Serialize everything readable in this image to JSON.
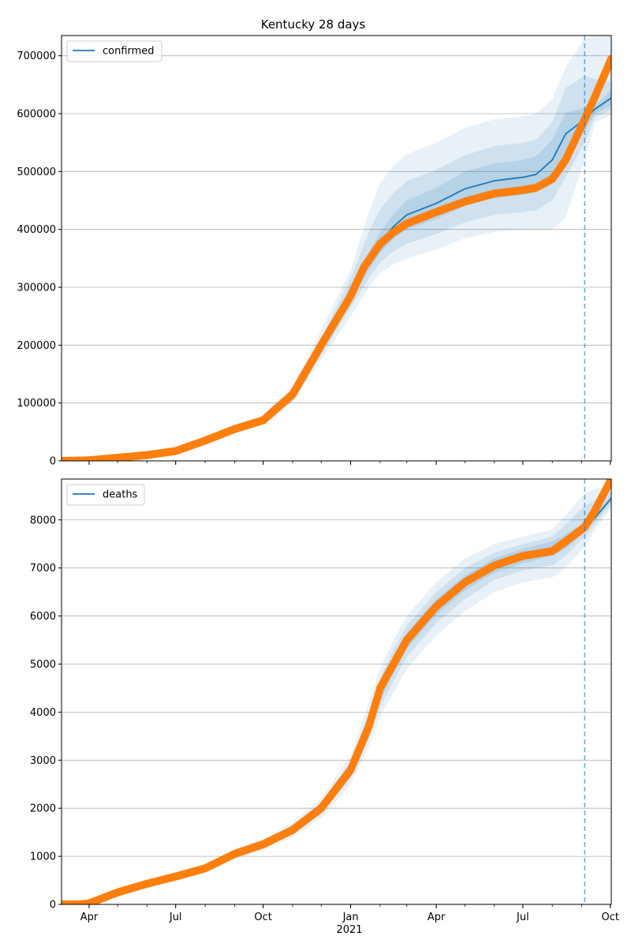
{
  "figure": {
    "title": "Kentucky 28 days",
    "shared_x_label": "2021"
  },
  "colors": {
    "model": "#1f77b4",
    "observed": "#ff7f0e",
    "band": "#1f77b4",
    "grid": "#b0b0b0",
    "axes": "#000000"
  },
  "chart_data": [
    {
      "type": "line",
      "title": "Kentucky 28 days",
      "legend": {
        "labels": [
          "confirmed"
        ],
        "placement": "top-left"
      },
      "x_ticks": [
        "Apr",
        "Jul",
        "Oct",
        "Jan",
        "Apr",
        "Jul",
        "Oct"
      ],
      "x_tick_dates": [
        "2020-04-01",
        "2020-07-01",
        "2020-10-01",
        "2021-01-01",
        "2021-04-01",
        "2021-07-01",
        "2021-10-01"
      ],
      "xlim": [
        "2020-03-03",
        "2021-10-02"
      ],
      "ylim": [
        0,
        735000
      ],
      "y_ticks": [
        0,
        100000,
        200000,
        300000,
        400000,
        500000,
        600000,
        700000
      ],
      "grid": "horizontal",
      "forecast_start": "2021-09-04",
      "series": [
        {
          "name": "confirmed",
          "style": "line",
          "x": [
            "2020-03-03",
            "2020-04-01",
            "2020-05-01",
            "2020-06-01",
            "2020-07-01",
            "2020-08-01",
            "2020-09-01",
            "2020-10-01",
            "2020-11-01",
            "2020-12-01",
            "2021-01-01",
            "2021-01-20",
            "2021-02-01",
            "2021-02-15",
            "2021-03-01",
            "2021-04-01",
            "2021-05-01",
            "2021-06-01",
            "2021-07-01",
            "2021-07-15",
            "2021-08-01",
            "2021-08-15",
            "2021-09-04",
            "2021-09-15",
            "2021-10-02"
          ],
          "y": [
            0,
            1000,
            5500,
            10000,
            17000,
            35000,
            55000,
            70000,
            110000,
            195000,
            290000,
            345000,
            378000,
            405000,
            425000,
            445000,
            470000,
            484000,
            490000,
            495000,
            520000,
            565000,
            590000,
            608000,
            627000
          ]
        },
        {
          "style": "markers",
          "x": [
            "2020-03-03",
            "2020-04-01",
            "2020-05-01",
            "2020-06-01",
            "2020-07-01",
            "2020-08-01",
            "2020-09-01",
            "2020-10-01",
            "2020-11-01",
            "2020-12-01",
            "2021-01-01",
            "2021-01-15",
            "2021-02-01",
            "2021-02-15",
            "2021-03-01",
            "2021-04-01",
            "2021-05-01",
            "2021-06-01",
            "2021-07-01",
            "2021-07-15",
            "2021-08-01",
            "2021-08-15",
            "2021-09-04",
            "2021-09-15",
            "2021-10-02"
          ],
          "y": [
            0,
            1000,
            5500,
            10000,
            17000,
            35000,
            55000,
            70000,
            115000,
            200000,
            285000,
            335000,
            375000,
            395000,
            410000,
            430000,
            448000,
            462000,
            468000,
            472000,
            487000,
            520000,
            590000,
            630000,
            695000
          ]
        }
      ],
      "bands": [
        {
          "lower": [
            0,
            800,
            4900,
            9100,
            15600,
            32000,
            50000,
            64500,
            100000,
            175000,
            250000,
            300000,
            325000,
            340000,
            350000,
            365000,
            385000,
            395000,
            400000,
            400000,
            400000,
            420000,
            520000,
            585000,
            598000
          ],
          "upper": [
            0,
            1200,
            6100,
            10900,
            18400,
            38500,
            63000,
            80000,
            130000,
            225000,
            330000,
            430000,
            480000,
            510000,
            530000,
            550000,
            575000,
            590000,
            595000,
            600000,
            625000,
            680000,
            730000,
            735000,
            735000
          ]
        },
        {
          "lower": [
            0,
            850,
            5050,
            9300,
            16000,
            33000,
            52000,
            66500,
            103000,
            182000,
            265000,
            315000,
            343000,
            362000,
            375000,
            392000,
            412000,
            425000,
            430000,
            433000,
            450000,
            490000,
            550000,
            594000,
            606000
          ],
          "upper": [
            0,
            1150,
            5950,
            10700,
            18000,
            37000,
            59000,
            75000,
            122000,
            212000,
            315000,
            395000,
            435000,
            463000,
            483000,
            503000,
            528000,
            544000,
            550000,
            555000,
            585000,
            645000,
            665000,
            660000,
            655000
          ]
        },
        {
          "lower": [
            0,
            900,
            5200,
            9600,
            16400,
            34000,
            53500,
            68000,
            106000,
            188000,
            277000,
            330000,
            360000,
            384000,
            400000,
            418000,
            440000,
            454000,
            460000,
            464000,
            485000,
            528000,
            570000,
            600000,
            614000
          ],
          "upper": [
            0,
            1100,
            5800,
            10400,
            17600,
            36000,
            56500,
            72000,
            114000,
            202000,
            303000,
            360000,
            396000,
            426000,
            450000,
            472000,
            500000,
            514000,
            520000,
            526000,
            555000,
            602000,
            610000,
            615000,
            640000
          ]
        }
      ]
    },
    {
      "type": "line",
      "legend": {
        "labels": [
          "deaths"
        ],
        "placement": "top-left"
      },
      "x_ticks": [
        "Apr",
        "Jul",
        "Oct",
        "Jan",
        "Apr",
        "Jul",
        "Oct"
      ],
      "x_tick_dates": [
        "2020-04-01",
        "2020-07-01",
        "2020-10-01",
        "2021-01-01",
        "2021-04-01",
        "2021-07-01",
        "2021-10-01"
      ],
      "xlim": [
        "2020-03-03",
        "2021-10-02"
      ],
      "ylim": [
        0,
        8850
      ],
      "y_ticks": [
        0,
        1000,
        2000,
        3000,
        4000,
        5000,
        6000,
        7000,
        8000
      ],
      "grid": "horizontal",
      "forecast_start": "2021-09-04",
      "series": [
        {
          "name": "deaths",
          "style": "line",
          "x": [
            "2020-03-03",
            "2020-03-20",
            "2020-04-01",
            "2020-05-01",
            "2020-06-01",
            "2020-07-01",
            "2020-08-01",
            "2020-09-01",
            "2020-10-01",
            "2020-11-01",
            "2020-12-01",
            "2021-01-01",
            "2021-01-20",
            "2021-02-01",
            "2021-02-15",
            "2021-03-01",
            "2021-04-01",
            "2021-05-01",
            "2021-06-01",
            "2021-07-01",
            "2021-08-01",
            "2021-08-15",
            "2021-09-04",
            "2021-09-15",
            "2021-10-02"
          ],
          "y": [
            0,
            0,
            20,
            250,
            430,
            580,
            750,
            1050,
            1250,
            1550,
            2000,
            2800,
            3700,
            4400,
            5000,
            5500,
            6200,
            6700,
            7050,
            7250,
            7400,
            7550,
            7850,
            8050,
            8450
          ]
        },
        {
          "style": "markers",
          "x": [
            "2020-03-03",
            "2020-03-20",
            "2020-04-01",
            "2020-05-01",
            "2020-06-01",
            "2020-07-01",
            "2020-08-01",
            "2020-09-01",
            "2020-10-01",
            "2020-11-01",
            "2020-12-01",
            "2021-01-01",
            "2021-01-20",
            "2021-02-01",
            "2021-02-15",
            "2021-03-01",
            "2021-04-01",
            "2021-05-01",
            "2021-06-01",
            "2021-07-01",
            "2021-08-01",
            "2021-08-15",
            "2021-09-04",
            "2021-09-15",
            "2021-10-02"
          ],
          "y": [
            0,
            0,
            20,
            250,
            430,
            580,
            750,
            1050,
            1250,
            1550,
            2000,
            2800,
            3700,
            4500,
            5000,
            5500,
            6200,
            6700,
            7050,
            7250,
            7350,
            7550,
            7850,
            8200,
            8850
          ]
        }
      ],
      "bands": [
        {
          "lower": [
            0,
            0,
            0,
            210,
            380,
            520,
            680,
            950,
            1130,
            1400,
            1800,
            2500,
            3300,
            3900,
            4400,
            4900,
            5600,
            6100,
            6500,
            6700,
            6800,
            7000,
            7450,
            7800,
            8250
          ],
          "upper": [
            0,
            0,
            40,
            290,
            480,
            640,
            820,
            1150,
            1370,
            1700,
            2200,
            3100,
            4200,
            4900,
            5500,
            6000,
            6700,
            7200,
            7500,
            7650,
            7800,
            8100,
            8550,
            8650,
            8700
          ]
        },
        {
          "lower": [
            0,
            0,
            10,
            225,
            400,
            545,
            710,
            990,
            1180,
            1460,
            1880,
            2620,
            3450,
            4100,
            4650,
            5150,
            5850,
            6350,
            6750,
            6950,
            7050,
            7250,
            7650,
            7900,
            8330
          ],
          "upper": [
            0,
            0,
            30,
            275,
            460,
            615,
            790,
            1110,
            1320,
            1640,
            2120,
            2980,
            3950,
            4700,
            5300,
            5800,
            6500,
            7000,
            7320,
            7500,
            7650,
            7900,
            8300,
            8400,
            8600
          ]
        },
        {
          "lower": [
            0,
            0,
            15,
            238,
            415,
            562,
            730,
            1020,
            1215,
            1505,
            1940,
            2710,
            3580,
            4250,
            4820,
            5320,
            6020,
            6530,
            6900,
            7100,
            7250,
            7400,
            7750,
            7980,
            8400
          ],
          "upper": [
            0,
            0,
            25,
            262,
            445,
            598,
            770,
            1080,
            1285,
            1595,
            2060,
            2890,
            3820,
            4550,
            5150,
            5650,
            6350,
            6850,
            7200,
            7400,
            7550,
            7700,
            7950,
            8120,
            8500
          ]
        }
      ]
    }
  ]
}
